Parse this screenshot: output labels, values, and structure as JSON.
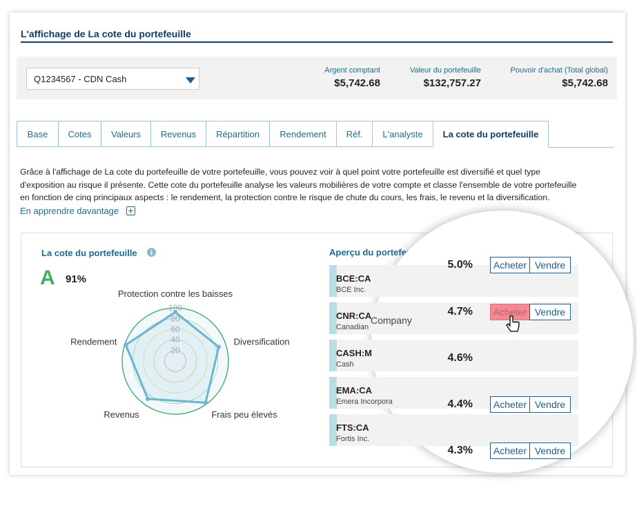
{
  "header": {
    "title": "L'affichage de La cote du portefeuille"
  },
  "account": {
    "selected": "Q1234567 - CDN Cash",
    "stats": [
      {
        "label": "Argent comptant",
        "value": "$5,742.68"
      },
      {
        "label": "Valeur du portefeuille",
        "value": "$132,757.27"
      },
      {
        "label": "Pouvoir d'achat (Total global)",
        "value": "$5,742.68"
      }
    ]
  },
  "tabs": {
    "items": [
      "Base",
      "Cotes",
      "Valeurs",
      "Revenus",
      "Répartition",
      "Rendement",
      "Réf.",
      "L'analyste",
      "La cote du portefeuille"
    ],
    "active": 8
  },
  "intro": {
    "lines": [
      "Grâce à l'affichage de La cote du portefeuille de votre portefeuille, vous pouvez voir à quel point votre portefeuille est diversifié et quel type",
      "d'exposition au risque il présente. Cette cote du portefeuille analyse les valeurs mobilières de votre compte et classe l'ensemble de votre portefeuille",
      "en fonction de cinq principaux aspects : le rendement, la protection contre le risque de chute du cours, les frais, le revenu et la diversification."
    ],
    "link": "En apprendre davantage"
  },
  "score": {
    "title": "La cote du portefeuille",
    "grade": "A",
    "percent": "91%"
  },
  "radar": {
    "axes": [
      "Protection contre les baisses",
      "Diversification",
      "Frais peu élevés",
      "Revenus",
      "Rendement"
    ],
    "values": [
      92,
      86,
      97,
      88,
      98
    ],
    "rlim": [
      0,
      100
    ],
    "rticks": [
      20,
      40,
      60,
      80,
      100
    ]
  },
  "overview": {
    "title": "Aperçu du portefeuille",
    "buy_label": "Acheter",
    "sell_label": "Vendre",
    "rows": [
      {
        "symbol": "BCE:CA",
        "name": "BCE Inc.",
        "weight": "5.0%",
        "actions": true
      },
      {
        "symbol": "CNR:CA",
        "name": "Canadian",
        "name_overflow": "Company",
        "weight": "4.7%",
        "actions": true
      },
      {
        "symbol": "CASH:M",
        "name": "Cash",
        "weight": "4.6%",
        "actions": false
      },
      {
        "symbol": "EMA:CA",
        "name": "Emera Incorpora",
        "weight": "4.4%",
        "actions": true
      },
      {
        "symbol": "FTS:CA",
        "name": "Fortis Inc.",
        "weight": "4.3%",
        "actions": true
      }
    ]
  }
}
